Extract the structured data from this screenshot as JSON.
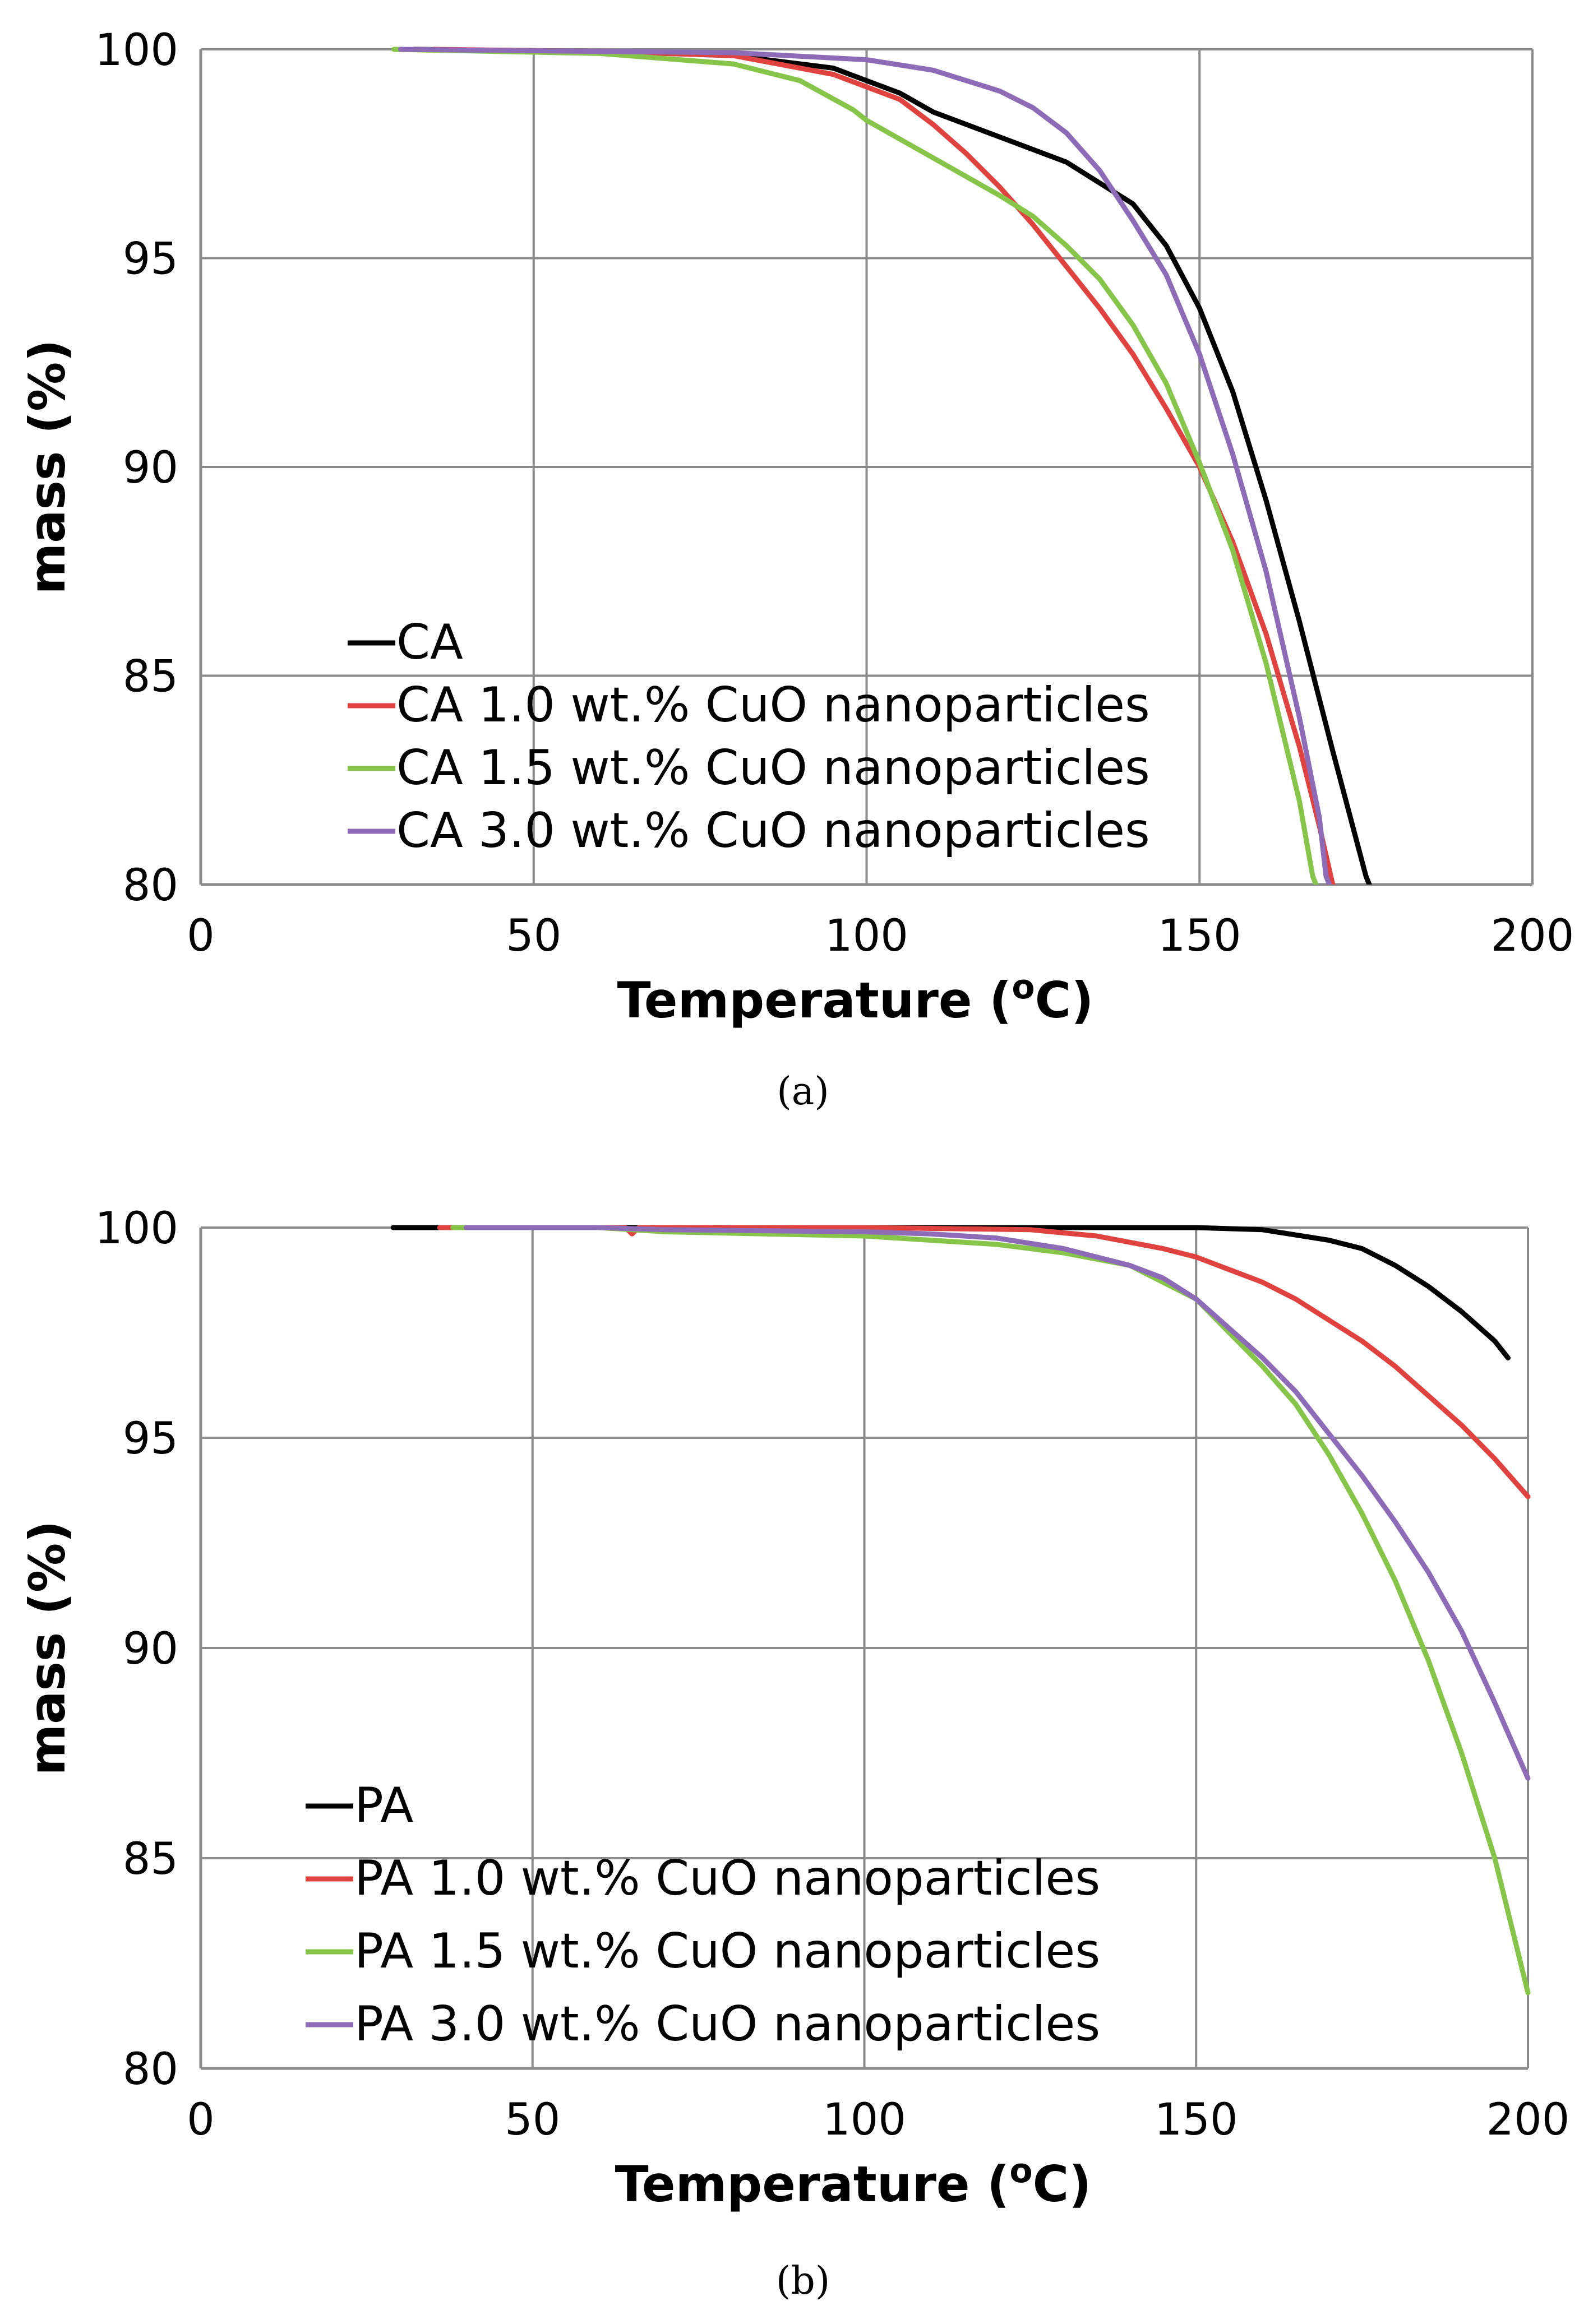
{
  "chart_data": [
    {
      "type": "line",
      "panel_caption": "(a)",
      "xlabel": "Temperature (",
      "xlabel_sup": "o",
      "xlabel_end": "C)",
      "ylabel": "mass (%)",
      "xlim": [
        0,
        200
      ],
      "ylim": [
        80,
        100
      ],
      "x_ticks": [
        0,
        50,
        100,
        150,
        200
      ],
      "y_ticks": [
        80,
        85,
        90,
        95,
        100
      ],
      "grid": true,
      "legend_position": "lower-left",
      "series": [
        {
          "name": "CA",
          "color": "#000000",
          "points": [
            [
              32,
              100
            ],
            [
              60,
              99.95
            ],
            [
              80,
              99.85
            ],
            [
              95,
              99.55
            ],
            [
              105,
              98.95
            ],
            [
              110,
              98.5
            ],
            [
              120,
              97.9
            ],
            [
              130,
              97.3
            ],
            [
              140,
              96.3
            ],
            [
              145,
              95.3
            ],
            [
              150,
              93.8
            ],
            [
              155,
              91.8
            ],
            [
              160,
              89.2
            ],
            [
              165,
              86.3
            ],
            [
              170,
              83.2
            ],
            [
              175,
              80.2
            ],
            [
              176,
              79.8
            ]
          ]
        },
        {
          "name": "CA 1.0 wt.% CuO nanoparticles",
          "color": "#e0433f",
          "points": [
            [
              35,
              100
            ],
            [
              60,
              99.95
            ],
            [
              80,
              99.85
            ],
            [
              95,
              99.4
            ],
            [
              105,
              98.8
            ],
            [
              110,
              98.2
            ],
            [
              115,
              97.5
            ],
            [
              120,
              96.7
            ],
            [
              125,
              95.8
            ],
            [
              130,
              94.8
            ],
            [
              135,
              93.8
            ],
            [
              140,
              92.7
            ],
            [
              145,
              91.4
            ],
            [
              150,
              90.0
            ],
            [
              155,
              88.2
            ],
            [
              160,
              86.0
            ],
            [
              165,
              83.3
            ],
            [
              168,
              81.4
            ],
            [
              170,
              80.0
            ]
          ]
        },
        {
          "name": "CA 1.5 wt.% CuO nanoparticles",
          "color": "#86c54a",
          "points": [
            [
              29,
              100
            ],
            [
              60,
              99.9
            ],
            [
              80,
              99.65
            ],
            [
              90,
              99.25
            ],
            [
              98,
              98.55
            ],
            [
              100,
              98.3
            ],
            [
              110,
              97.4
            ],
            [
              120,
              96.5
            ],
            [
              125,
              96.0
            ],
            [
              130,
              95.3
            ],
            [
              135,
              94.5
            ],
            [
              140,
              93.4
            ],
            [
              145,
              92.0
            ],
            [
              150,
              90.1
            ],
            [
              155,
              88.0
            ],
            [
              160,
              85.3
            ],
            [
              165,
              82.0
            ],
            [
              167,
              80.2
            ],
            [
              168,
              79.8
            ]
          ]
        },
        {
          "name": "CA 3.0 wt.% CuO nanoparticles",
          "color": "#8e6bb6",
          "points": [
            [
              30,
              100
            ],
            [
              60,
              99.95
            ],
            [
              80,
              99.92
            ],
            [
              100,
              99.75
            ],
            [
              110,
              99.5
            ],
            [
              120,
              99.0
            ],
            [
              125,
              98.6
            ],
            [
              130,
              98.0
            ],
            [
              135,
              97.1
            ],
            [
              140,
              95.9
            ],
            [
              145,
              94.6
            ],
            [
              150,
              92.7
            ],
            [
              155,
              90.3
            ],
            [
              160,
              87.5
            ],
            [
              165,
              84.0
            ],
            [
              168,
              81.6
            ],
            [
              169,
              80.2
            ],
            [
              170,
              79.8
            ]
          ]
        }
      ]
    },
    {
      "type": "line",
      "panel_caption": "(b)",
      "xlabel": "Temperature (",
      "xlabel_sup": "o",
      "xlabel_end": "C)",
      "ylabel": "mass (%)",
      "xlim": [
        0,
        200
      ],
      "ylim": [
        80,
        100
      ],
      "x_ticks": [
        0,
        50,
        100,
        150,
        200
      ],
      "y_ticks": [
        80,
        85,
        90,
        95,
        100
      ],
      "grid": true,
      "legend_position": "lower-left",
      "series": [
        {
          "name": "PA",
          "color": "#000000",
          "points": [
            [
              29,
              100
            ],
            [
              60,
              100
            ],
            [
              100,
              100
            ],
            [
              140,
              100
            ],
            [
              150,
              100
            ],
            [
              160,
              99.95
            ],
            [
              170,
              99.7
            ],
            [
              175,
              99.5
            ],
            [
              180,
              99.1
            ],
            [
              185,
              98.6
            ],
            [
              190,
              98.0
            ],
            [
              195,
              97.3
            ],
            [
              197,
              96.9
            ]
          ]
        },
        {
          "name": "PA 1.0 wt.% CuO nanoparticles",
          "color": "#e0433f",
          "points": [
            [
              36,
              100
            ],
            [
              64,
              100
            ],
            [
              65,
              99.85
            ],
            [
              66,
              100
            ],
            [
              100,
              100
            ],
            [
              125,
              99.95
            ],
            [
              135,
              99.8
            ],
            [
              145,
              99.5
            ],
            [
              150,
              99.3
            ],
            [
              155,
              99.0
            ],
            [
              160,
              98.7
            ],
            [
              165,
              98.3
            ],
            [
              170,
              97.8
            ],
            [
              175,
              97.3
            ],
            [
              180,
              96.7
            ],
            [
              185,
              96.0
            ],
            [
              190,
              95.3
            ],
            [
              195,
              94.5
            ],
            [
              200,
              93.6
            ]
          ]
        },
        {
          "name": "PA 1.5 wt.% CuO nanoparticles",
          "color": "#86c54a",
          "points": [
            [
              38,
              100
            ],
            [
              60,
              100
            ],
            [
              65,
              99.95
            ],
            [
              70,
              99.9
            ],
            [
              100,
              99.8
            ],
            [
              110,
              99.7
            ],
            [
              120,
              99.6
            ],
            [
              130,
              99.4
            ],
            [
              140,
              99.1
            ],
            [
              145,
              98.7
            ],
            [
              150,
              98.3
            ],
            [
              155,
              97.5
            ],
            [
              160,
              96.7
            ],
            [
              165,
              95.8
            ],
            [
              170,
              94.6
            ],
            [
              175,
              93.2
            ],
            [
              180,
              91.6
            ],
            [
              185,
              89.7
            ],
            [
              190,
              87.5
            ],
            [
              195,
              85.0
            ],
            [
              200,
              81.8
            ]
          ]
        },
        {
          "name": "PA 3.0 wt.% CuO nanoparticles",
          "color": "#8e6bb6",
          "points": [
            [
              40,
              100
            ],
            [
              60,
              100
            ],
            [
              70,
              99.95
            ],
            [
              100,
              99.9
            ],
            [
              110,
              99.85
            ],
            [
              120,
              99.75
            ],
            [
              130,
              99.5
            ],
            [
              140,
              99.1
            ],
            [
              145,
              98.8
            ],
            [
              150,
              98.3
            ],
            [
              155,
              97.6
            ],
            [
              160,
              96.9
            ],
            [
              165,
              96.1
            ],
            [
              170,
              95.1
            ],
            [
              175,
              94.1
            ],
            [
              180,
              93.0
            ],
            [
              185,
              91.8
            ],
            [
              190,
              90.4
            ],
            [
              195,
              88.7
            ],
            [
              200,
              86.9
            ]
          ]
        }
      ]
    }
  ]
}
